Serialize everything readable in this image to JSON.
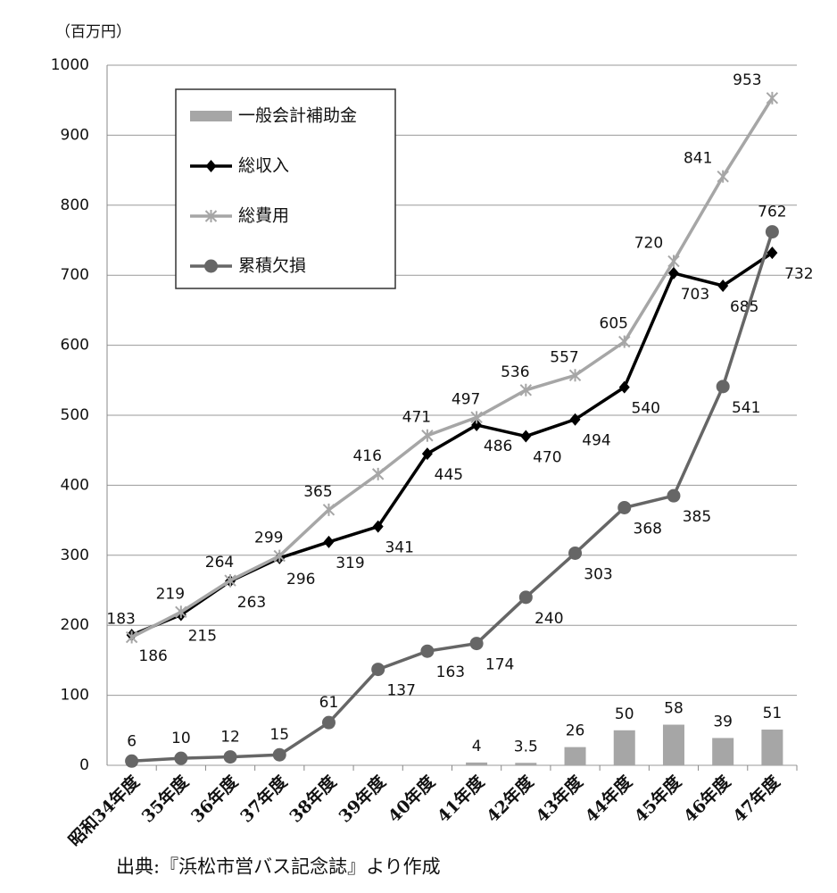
{
  "chart_data": {
    "type": "line",
    "y_label": "（百万円）",
    "source": "出典:『浜松市営バス記念誌』より作成",
    "categories": [
      "昭和34年度",
      "35年度",
      "36年度",
      "37年度",
      "38年度",
      "39年度",
      "40年度",
      "41年度",
      "42年度",
      "43年度",
      "44年度",
      "45年度",
      "46年度",
      "47年度"
    ],
    "ylim": [
      0,
      1000
    ],
    "yticks": [
      0,
      100,
      200,
      300,
      400,
      500,
      600,
      700,
      800,
      900,
      1000
    ],
    "grid": true,
    "legend": "upper-left",
    "series": [
      {
        "name": "一般会計補助金",
        "type": "bar",
        "color": "#a6a6a6",
        "values": [
          null,
          null,
          null,
          null,
          null,
          null,
          null,
          4,
          3.5,
          26,
          50,
          58,
          39,
          51
        ]
      },
      {
        "name": "総収入",
        "type": "line",
        "marker": "diamond",
        "color": "#000000",
        "values": [
          186,
          215,
          263,
          296,
          319,
          341,
          445,
          486,
          470,
          494,
          540,
          703,
          685,
          732
        ]
      },
      {
        "name": "総費用",
        "type": "line",
        "marker": "star",
        "color": "#a6a6a6",
        "values": [
          183,
          219,
          264,
          299,
          365,
          416,
          471,
          497,
          536,
          557,
          605,
          720,
          841,
          953
        ]
      },
      {
        "name": "累積欠損",
        "type": "line",
        "marker": "circle",
        "color": "#666666",
        "values": [
          6,
          10,
          12,
          15,
          61,
          137,
          163,
          174,
          240,
          303,
          368,
          385,
          541,
          762
        ]
      }
    ]
  }
}
